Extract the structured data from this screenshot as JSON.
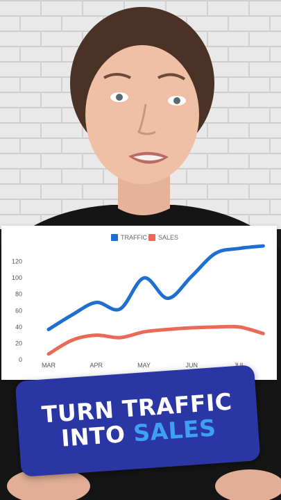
{
  "colors": {
    "traffic": "#1f6fd1",
    "sales": "#ea6a57",
    "banner_bg": "#2b36a5",
    "banner_accent": "#3ea0f5"
  },
  "chart_data": {
    "type": "line",
    "categories": [
      "MAR",
      "APR",
      "MAY",
      "JUN",
      "JUL"
    ],
    "x": [
      0,
      0.5,
      1,
      1.5,
      2,
      2.5,
      3,
      3.5,
      4,
      4.5
    ],
    "series": [
      {
        "name": "TRAFFIC",
        "color": "#1f6fd1",
        "values": [
          37,
          55,
          70,
          62,
          100,
          75,
          102,
          130,
          136,
          139
        ]
      },
      {
        "name": "SALES",
        "color": "#ea6a57",
        "values": [
          7,
          24,
          30,
          27,
          34,
          37,
          39,
          40,
          40,
          32
        ]
      }
    ],
    "yticks": [
      0,
      20,
      40,
      60,
      80,
      100,
      120
    ],
    "ylim": [
      0,
      140
    ],
    "legend_position": "top",
    "grid": false
  },
  "banner": {
    "line1": "TURN TRAFFIC",
    "line2_prefix": "INTO ",
    "line2_accent": "SALES"
  }
}
